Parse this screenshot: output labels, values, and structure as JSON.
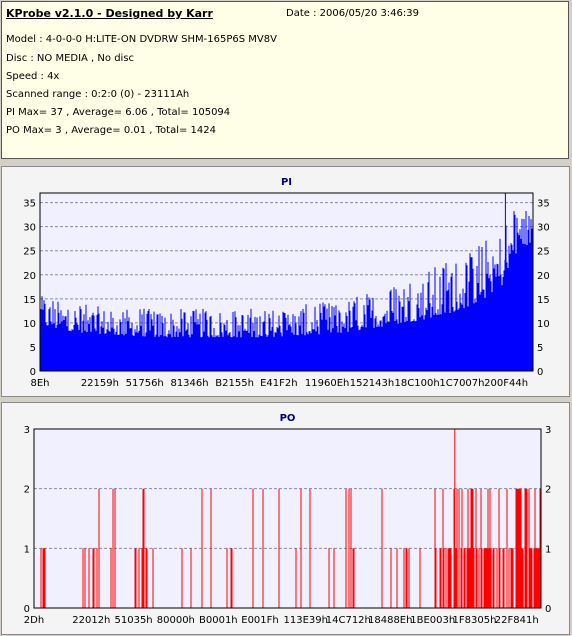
{
  "info": {
    "title": "KProbe v2.1.0 - Designed by Karr",
    "date": "Date : 2006/05/20 3:46:39",
    "lines": [
      "Model : 4-0-0-0 H:LITE-ON DVDRW SHM-165P6S MV8V",
      "Disc : NO MEDIA , No disc",
      "Speed : 4x",
      "Scanned range : 0:2:0 (0) - 23111Ah",
      "PI Max= 37 , Average= 6.06 , Total= 105094",
      "PO Max= 3 , Average= 0.01 , Total= 1424"
    ]
  },
  "colors": {
    "pi": "#0000ff",
    "po": "#ff0000",
    "title": "#000080",
    "plot_bg": "#f0f0ff",
    "grid": "#8a8aa8"
  },
  "chart_data": [
    {
      "type": "bar",
      "title": "PI",
      "ylim": [
        0,
        37
      ],
      "yticks": [
        0,
        5,
        10,
        15,
        20,
        25,
        30,
        35
      ],
      "xticks": [
        "8Eh",
        "22159h",
        "51756h",
        "81346h",
        "B2155h",
        "E41F2h",
        "11960Eh",
        "152143h",
        "18C100h",
        "1C7007h",
        "200F44h"
      ],
      "x_range": [
        "8Eh",
        "23111Ah"
      ],
      "grid": "horizontal dashed",
      "stats": {
        "max": 37,
        "average": 6.06,
        "total": 105094
      },
      "profile": {
        "positions": [
          0.0,
          0.02,
          0.08,
          0.15,
          0.25,
          0.35,
          0.45,
          0.55,
          0.62,
          0.68,
          0.74,
          0.8,
          0.86,
          0.9,
          0.94,
          0.97,
          1.0
        ],
        "base_values": [
          10,
          9,
          8,
          7.5,
          7,
          7,
          7,
          7.5,
          8,
          9,
          10,
          11,
          13,
          15,
          18,
          25,
          27
        ],
        "peak_values": [
          17,
          15,
          14,
          13,
          13,
          13,
          13,
          14,
          15,
          17,
          20,
          22,
          25,
          27,
          30,
          37,
          32
        ]
      }
    },
    {
      "type": "bar",
      "title": "PO",
      "ylim": [
        0,
        3
      ],
      "yticks": [
        0,
        1,
        2,
        3
      ],
      "xticks": [
        "2Dh",
        "22012h",
        "51035h",
        "80000h",
        "B0001h",
        "E001Fh",
        "113E39h",
        "14C712h",
        "18488Eh",
        "1BE003h",
        "1F8305h",
        "22F841h"
      ],
      "x_range": [
        "2Dh",
        "23111Ah"
      ],
      "grid": "horizontal dashed",
      "stats": {
        "max": 3,
        "average": 0.01,
        "total": 1424
      },
      "peak": {
        "position": 0.83,
        "value": 3
      },
      "dense_region": [
        0.79,
        1.0
      ]
    }
  ]
}
